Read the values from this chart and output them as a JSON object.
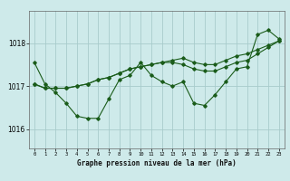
{
  "title": "Graphe pression niveau de la mer (hPa)",
  "xlabel_hours": [
    0,
    1,
    2,
    3,
    4,
    5,
    6,
    7,
    8,
    9,
    10,
    11,
    12,
    13,
    14,
    15,
    16,
    17,
    18,
    19,
    20,
    21,
    22,
    23
  ],
  "ylim": [
    1015.55,
    1018.75
  ],
  "yticks": [
    1016,
    1017,
    1018
  ],
  "background_color": "#ceeaea",
  "grid_color": "#a8cccc",
  "line_color": "#1a5c1a",
  "line1": [
    1017.55,
    1017.05,
    1016.85,
    1016.6,
    1016.3,
    1016.25,
    1016.25,
    1016.7,
    1017.15,
    1017.25,
    1017.55,
    1017.25,
    1017.1,
    1017.0,
    1017.1,
    1016.6,
    1016.55,
    1016.8,
    1017.1,
    1017.4,
    1017.45,
    1018.2,
    1018.3,
    1018.1
  ],
  "line2": [
    1017.05,
    1016.95,
    1016.95,
    1016.95,
    1017.0,
    1017.05,
    1017.15,
    1017.2,
    1017.3,
    1017.4,
    1017.45,
    1017.5,
    1017.55,
    1017.6,
    1017.65,
    1017.55,
    1017.5,
    1017.5,
    1017.6,
    1017.7,
    1017.75,
    1017.85,
    1017.95,
    1018.05
  ],
  "line3": [
    1017.05,
    1016.95,
    1016.95,
    1016.95,
    1017.0,
    1017.05,
    1017.15,
    1017.2,
    1017.3,
    1017.4,
    1017.45,
    1017.5,
    1017.55,
    1017.55,
    1017.5,
    1017.4,
    1017.35,
    1017.35,
    1017.45,
    1017.55,
    1017.6,
    1017.75,
    1017.9,
    1018.05
  ]
}
